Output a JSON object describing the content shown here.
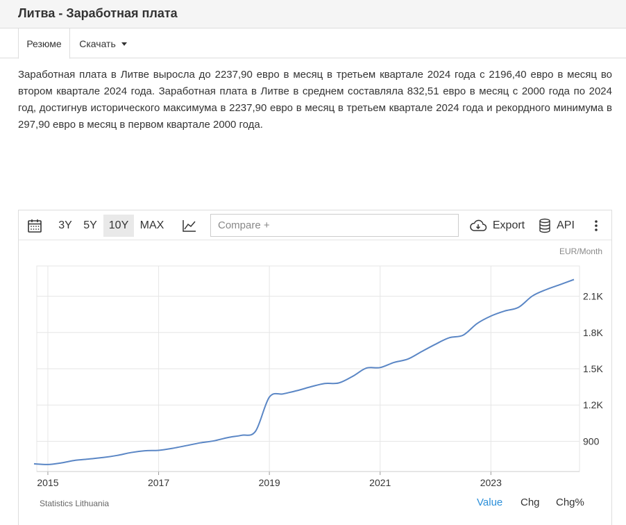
{
  "page": {
    "title": "Литва - Заработная плата",
    "tabs": [
      {
        "label": "Резюме"
      },
      {
        "label": "Скачать"
      }
    ],
    "description": "Заработная плата в Литве выросла до 2237,90 евро в месяц в третьем квартале 2024 года с 2196,40 евро в месяц во втором квартале 2024 года. Заработная плата в Литве в среднем составляла 832,51 евро в месяц с 2000 года по 2024 год, достигнув исторического максимума в 2237,90 евро в месяц в третьем квартале 2024 года и рекордного минимума в 297,90 евро в месяц в первом квартале 2000 года."
  },
  "toolbar": {
    "calendar_icon": "calendar-icon",
    "ranges": [
      "3Y",
      "5Y",
      "10Y",
      "MAX"
    ],
    "selected_range": "10Y",
    "chart_type_icon": "line-chart-icon",
    "compare_placeholder": "Compare +",
    "export_label": "Export",
    "api_label": "API",
    "more_icon": "vertical-dots-icon"
  },
  "chart_footer": {
    "source": "Statistics Lithuania",
    "modes": [
      "Value",
      "Chg",
      "Chg%"
    ],
    "active_mode": "Value",
    "active_color": "#2b8fd9"
  },
  "chart_data": {
    "type": "line",
    "unit": "EUR/Month",
    "line_color": "#5a86c5",
    "grid": true,
    "y_axis_side": "right",
    "xlim": [
      2014.8,
      2024.6
    ],
    "ylim": [
      650,
      2350
    ],
    "yticks": [
      900,
      1200,
      1500,
      1800,
      2100
    ],
    "ytick_labels": [
      "900",
      "1.2K",
      "1.5K",
      "1.8K",
      "2.1K"
    ],
    "xticks": [
      2015,
      2017,
      2019,
      2021,
      2023
    ],
    "xtick_labels": [
      "2015",
      "2017",
      "2019",
      "2021",
      "2023"
    ],
    "series": [
      {
        "x": [
          2014.75,
          2015.0,
          2015.25,
          2015.5,
          2015.75,
          2016.0,
          2016.25,
          2016.5,
          2016.75,
          2017.0,
          2017.25,
          2017.5,
          2017.75,
          2018.0,
          2018.25,
          2018.5,
          2018.75,
          2019.0,
          2019.25,
          2019.5,
          2019.75,
          2020.0,
          2020.25,
          2020.5,
          2020.75,
          2021.0,
          2021.25,
          2021.5,
          2021.75,
          2022.0,
          2022.25,
          2022.5,
          2022.75,
          2023.0,
          2023.25,
          2023.5,
          2023.75,
          2024.0,
          2024.25,
          2024.5
        ],
        "values": [
          714,
          708,
          722,
          743,
          754,
          766,
          783,
          807,
          822,
          825,
          842,
          864,
          887,
          904,
          931,
          950,
          983,
          1265,
          1292,
          1319,
          1351,
          1378,
          1382,
          1436,
          1505,
          1510,
          1552,
          1580,
          1642,
          1703,
          1757,
          1778,
          1874,
          1936,
          1978,
          2008,
          2102,
          2155,
          2196,
          2238
        ]
      }
    ]
  }
}
